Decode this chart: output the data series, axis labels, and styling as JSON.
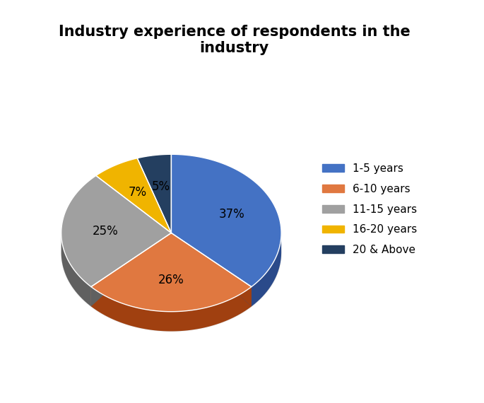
{
  "title": "Industry experience of respondents in the\nindustry",
  "labels": [
    "1-5 years",
    "6-10 years",
    "11-15 years",
    "16-20 years",
    "20 & Above"
  ],
  "values": [
    37,
    26,
    25,
    7,
    5
  ],
  "colors": [
    "#4472C4",
    "#E07840",
    "#A0A0A0",
    "#F0B400",
    "#243F60"
  ],
  "dark_colors": [
    "#2A4A8A",
    "#A04010",
    "#606060",
    "#B08000",
    "#0A1F40"
  ],
  "pct_labels": [
    "37%",
    "26%",
    "25%",
    "7%",
    "5%"
  ],
  "title_fontsize": 15,
  "legend_fontsize": 11,
  "pct_fontsize": 12,
  "startangle": 90,
  "background_color": "#FFFFFF"
}
